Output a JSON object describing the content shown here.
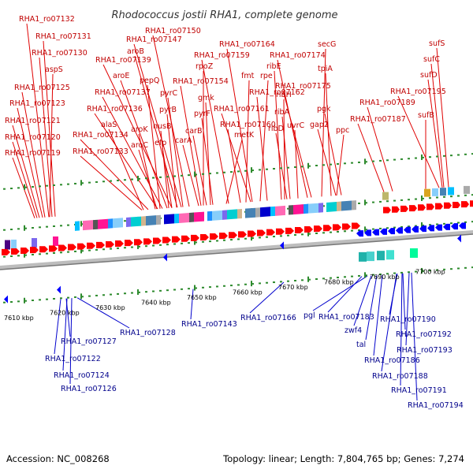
{
  "title": "Rhodococcus jostii RHA1, complete genome",
  "footer": {
    "accession": "Accession: NC_008268",
    "summary": "Topology: linear; Length: 7,804,765 bp; Genes: 7,274"
  },
  "ruler": {
    "unit_suffix": "kbp",
    "ticks": [
      7610,
      7620,
      7630,
      7640,
      7650,
      7660,
      7670,
      7680,
      7690,
      7700
    ]
  },
  "colors": {
    "forward_label": "#c00000",
    "reverse_label": "#00008b",
    "forward_gene": "#ff0000",
    "reverse_gene": "#0000ff",
    "backbone": "#999999"
  },
  "top_labels": [
    {
      "text": "RHA1_ro07132"
    },
    {
      "text": "RHA1_ro07131"
    },
    {
      "text": "RHA1_ro07130"
    },
    {
      "text": "aspS"
    },
    {
      "text": "RHA1_ro07125"
    },
    {
      "text": "RHA1_ro07123"
    },
    {
      "text": "RHA1_ro07121"
    },
    {
      "text": "RHA1_ro07120"
    },
    {
      "text": "RHA1_ro07119"
    },
    {
      "text": "RHA1_ro07150"
    },
    {
      "text": "RHA1_ro07147"
    },
    {
      "text": "aroB"
    },
    {
      "text": "RHA1_ro07139"
    },
    {
      "text": "aroE"
    },
    {
      "text": "RHA1_ro07137"
    },
    {
      "text": "RHA1_ro07136"
    },
    {
      "text": "alaS"
    },
    {
      "text": "RHA1_ro07134"
    },
    {
      "text": "RHA1_ro07133"
    },
    {
      "text": "pepQ"
    },
    {
      "text": "pyrC"
    },
    {
      "text": "pyrB"
    },
    {
      "text": "nusB"
    },
    {
      "text": "efp"
    },
    {
      "text": "aroK"
    },
    {
      "text": "aroC"
    },
    {
      "text": "RHA1_ro07154"
    },
    {
      "text": "rpoZ"
    },
    {
      "text": "gmk"
    },
    {
      "text": "pyrF"
    },
    {
      "text": "carB"
    },
    {
      "text": "carA"
    },
    {
      "text": "RHA1_ro07164"
    },
    {
      "text": "RHA1_ro07159"
    },
    {
      "text": "fmt"
    },
    {
      "text": "rpe"
    },
    {
      "text": "RHA1_ro07162"
    },
    {
      "text": "RHA1_ro07161"
    },
    {
      "text": "RHA1_ro07160"
    },
    {
      "text": "metK"
    },
    {
      "text": "RHA1_ro07174"
    },
    {
      "text": "ribE"
    },
    {
      "text": "ribH"
    },
    {
      "text": "ribA"
    },
    {
      "text": "ribD"
    },
    {
      "text": "uvrC"
    },
    {
      "text": "secG"
    },
    {
      "text": "tpiA"
    },
    {
      "text": "RHA1_ro07175"
    },
    {
      "text": "pgk"
    },
    {
      "text": "gap2"
    },
    {
      "text": "ppc"
    },
    {
      "text": "RHA1_ro07189"
    },
    {
      "text": "RHA1_ro07187"
    },
    {
      "text": "sufS"
    },
    {
      "text": "sufC"
    },
    {
      "text": "sufD"
    },
    {
      "text": "RHA1_ro07195"
    },
    {
      "text": "sufB"
    }
  ],
  "bottom_labels": [
    {
      "text": "RHA1_ro07127"
    },
    {
      "text": "RHA1_ro07122"
    },
    {
      "text": "RHA1_ro07124"
    },
    {
      "text": "RHA1_ro07126"
    },
    {
      "text": "RHA1_ro07128"
    },
    {
      "text": "RHA1_ro07143"
    },
    {
      "text": "RHA1_ro07166"
    },
    {
      "text": "pgl"
    },
    {
      "text": "RHA1_ro07183"
    },
    {
      "text": "zwf4"
    },
    {
      "text": "tal"
    },
    {
      "text": "RHA1_ro07190"
    },
    {
      "text": "RHA1_ro07192"
    },
    {
      "text": "RHA1_ro07186"
    },
    {
      "text": "RHA1_ro07193"
    },
    {
      "text": "RHA1_ro07188"
    },
    {
      "text": "RHA1_ro07191"
    },
    {
      "text": "RHA1_ro07194"
    }
  ]
}
